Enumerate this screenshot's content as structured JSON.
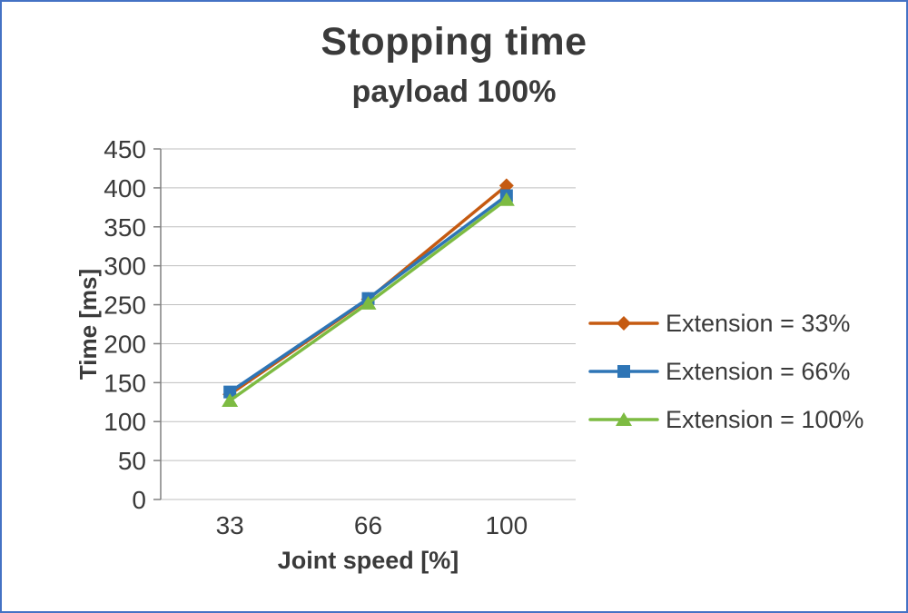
{
  "frame": {
    "border_color": "#4472C4",
    "background": "#FFFFFF"
  },
  "title": "Stopping time",
  "subtitle": "payload 100%",
  "chart_data": {
    "type": "line",
    "categories": [
      "33",
      "66",
      "100"
    ],
    "series": [
      {
        "name": "Extension = 33%",
        "color": "#C55A11",
        "marker": "diamond",
        "values": [
          135,
          257,
          403
        ]
      },
      {
        "name": "Extension = 66%",
        "color": "#2E75B6",
        "marker": "square",
        "values": [
          138,
          258,
          390
        ]
      },
      {
        "name": "Extension = 100%",
        "color": "#7DBB42",
        "marker": "triangle",
        "values": [
          127,
          252,
          385
        ]
      }
    ],
    "xlabel": "Joint speed [%]",
    "ylabel": "Time [ms]",
    "ylim": [
      0,
      450
    ],
    "ytick_step": 50,
    "grid": true,
    "gridline_color": "#BFBFBF",
    "axis_color": "#808080",
    "label_color": "#3A3A3A",
    "legend_position": "right"
  }
}
